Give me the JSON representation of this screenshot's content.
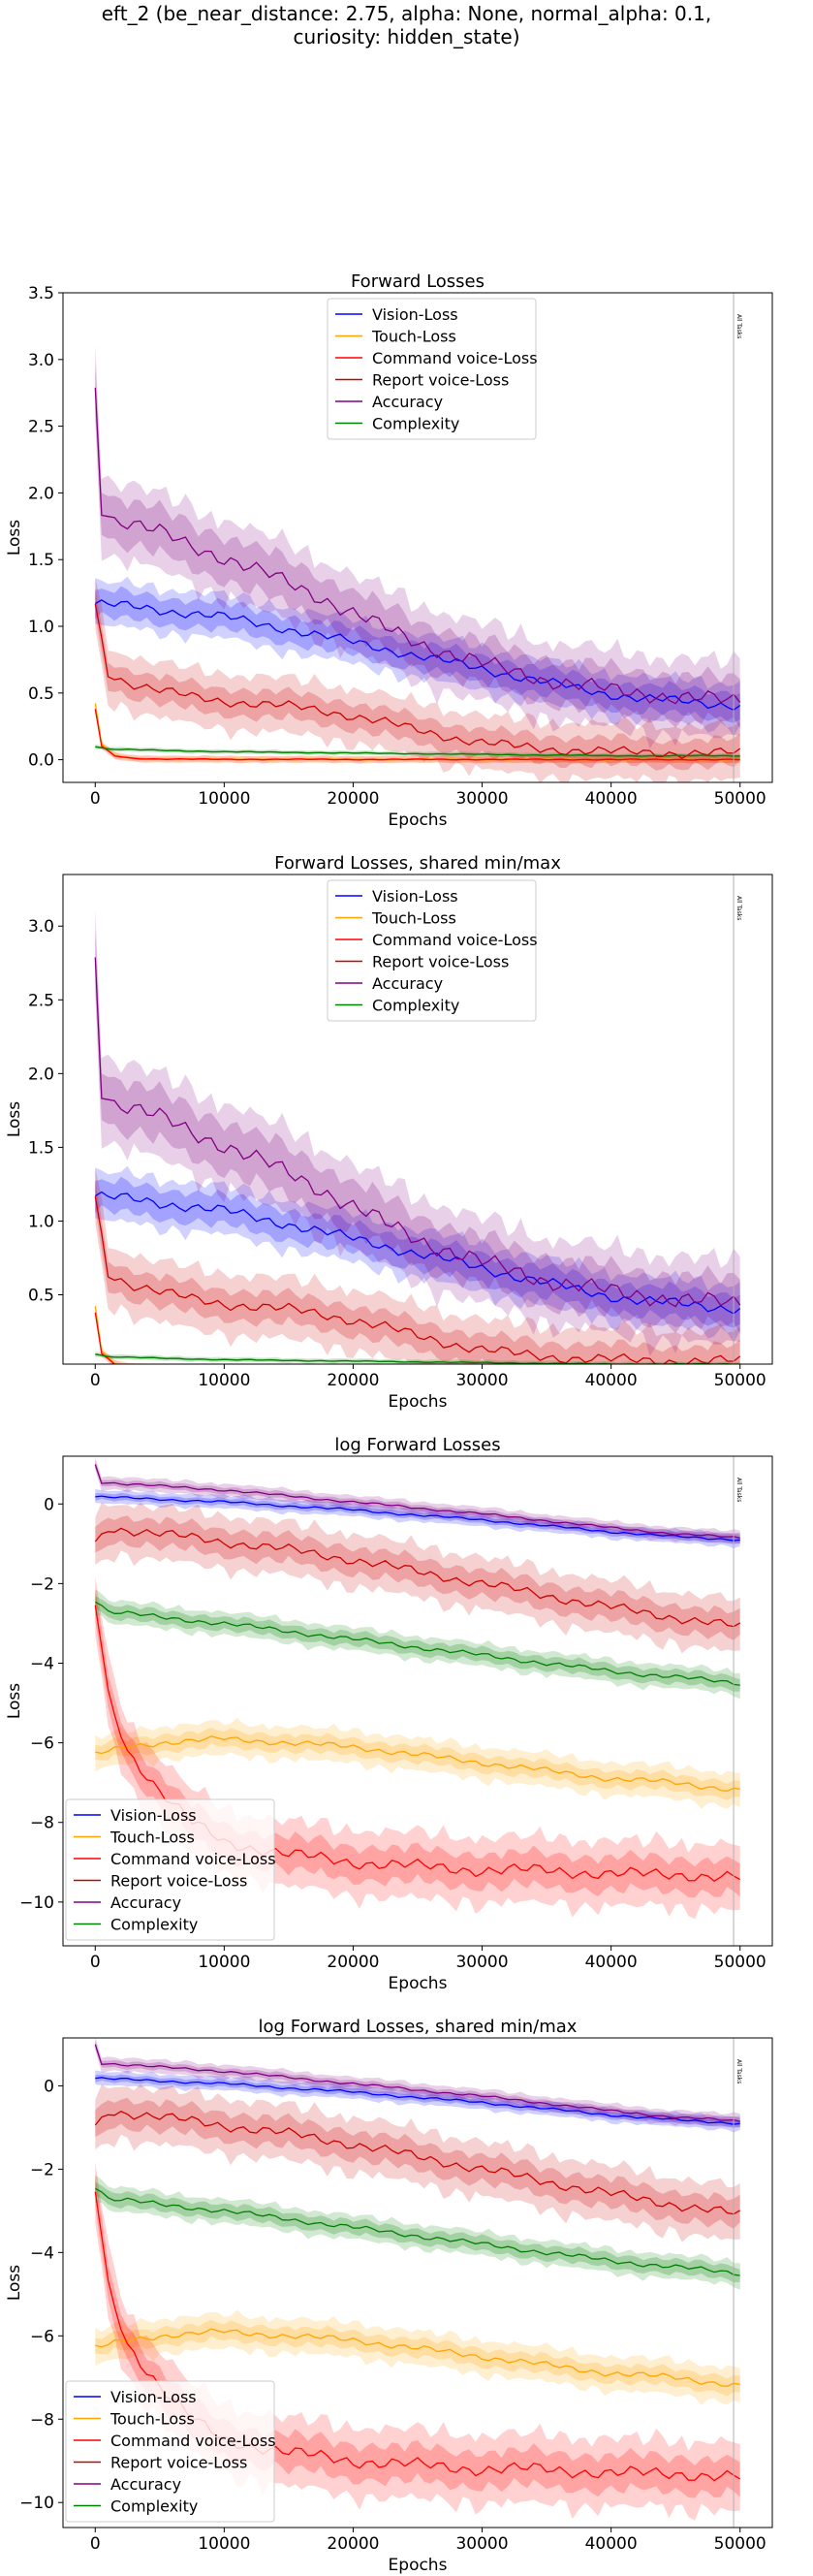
{
  "figure": {
    "title_line1": "eft_2 (be_near_distance: 2.75, alpha: None, normal_alpha: 0.1,",
    "title_line2": "curiosity: hidden_state)",
    "vline_label": "All Tasks"
  },
  "chart_data": [
    {
      "type": "line",
      "title": "Forward Losses",
      "xlabel": "Epochs",
      "ylabel": "Loss",
      "xlim": [
        -2500,
        52500
      ],
      "ylim": [
        -0.17,
        3.5
      ],
      "xticks": [
        0,
        10000,
        20000,
        30000,
        40000,
        50000
      ],
      "yticks": [
        0.0,
        0.5,
        1.0,
        1.5,
        2.0,
        2.5,
        3.0,
        3.5
      ],
      "ytick_labels": [
        "0.0",
        "0.5",
        "1.0",
        "1.5",
        "2.0",
        "2.5",
        "3.0",
        "3.5"
      ],
      "legend": "upper center",
      "vline_x": 49500,
      "series": [
        {
          "name": "Vision-Loss",
          "color": "#0000ff",
          "x": [
            0,
            2500,
            5000,
            7500,
            10000,
            12500,
            15000,
            17500,
            20000,
            22500,
            25000,
            27500,
            30000,
            32500,
            35000,
            37500,
            40000,
            42500,
            45000,
            47500,
            50000
          ],
          "y": [
            1.17,
            1.15,
            1.12,
            1.1,
            1.07,
            1.02,
            0.98,
            0.93,
            0.88,
            0.83,
            0.78,
            0.73,
            0.68,
            0.63,
            0.58,
            0.53,
            0.49,
            0.46,
            0.44,
            0.42,
            0.41
          ],
          "band": 0.12,
          "band2": 0.2
        },
        {
          "name": "Touch-Loss",
          "color": "#ffa500",
          "x": [
            0,
            500,
            1500,
            3000,
            5000,
            10000,
            20000,
            30000,
            40000,
            50000
          ],
          "y": [
            0.42,
            0.12,
            0.03,
            0.01,
            0.005,
            0.003,
            0.002,
            0.002,
            0.001,
            0.001
          ],
          "band": 0.01,
          "band2": 0.03
        },
        {
          "name": "Command voice-Loss",
          "color": "#ff0000",
          "x": [
            0,
            500,
            1500,
            3000,
            5000,
            10000,
            20000,
            30000,
            40000,
            50000
          ],
          "y": [
            0.38,
            0.1,
            0.03,
            0.01,
            0.005,
            0.003,
            0.002,
            0.002,
            0.001,
            0.001
          ],
          "band": 0.01,
          "band2": 0.03
        },
        {
          "name": "Report voice-Loss",
          "color": "#cc0000",
          "x": [
            0,
            1000,
            2500,
            5000,
            7500,
            10000,
            12500,
            15000,
            17500,
            20000,
            22500,
            25000,
            27500,
            30000,
            32500,
            35000,
            37500,
            40000,
            45000,
            50000
          ],
          "y": [
            1.15,
            0.65,
            0.58,
            0.52,
            0.47,
            0.44,
            0.42,
            0.4,
            0.37,
            0.33,
            0.28,
            0.22,
            0.17,
            0.13,
            0.1,
            0.08,
            0.07,
            0.06,
            0.05,
            0.05
          ],
          "band": 0.12,
          "band2": 0.25
        },
        {
          "name": "Accuracy",
          "color": "#800080",
          "x": [
            0,
            500,
            1500,
            2500,
            5000,
            7500,
            10000,
            12500,
            15000,
            17500,
            20000,
            22500,
            25000,
            27500,
            30000,
            32500,
            35000,
            37500,
            40000,
            42500,
            45000,
            47500,
            50000
          ],
          "y": [
            2.8,
            1.9,
            1.8,
            1.78,
            1.7,
            1.6,
            1.52,
            1.42,
            1.32,
            1.22,
            1.1,
            0.98,
            0.88,
            0.8,
            0.72,
            0.66,
            0.6,
            0.56,
            0.52,
            0.5,
            0.47,
            0.45,
            0.44
          ],
          "band": 0.2,
          "band2": 0.35
        },
        {
          "name": "Complexity",
          "color": "#008000",
          "x": [
            0,
            1000,
            5000,
            10000,
            20000,
            30000,
            40000,
            50000
          ],
          "y": [
            0.1,
            0.08,
            0.07,
            0.06,
            0.05,
            0.04,
            0.03,
            0.03
          ],
          "band": 0.01,
          "band2": 0.02
        }
      ]
    },
    {
      "type": "line",
      "title": "Forward Losses, shared min/max",
      "xlabel": "Epochs",
      "ylabel": "Loss",
      "xlim": [
        -2500,
        52500
      ],
      "ylim": [
        0.03,
        3.35
      ],
      "xticks": [
        0,
        10000,
        20000,
        30000,
        40000,
        50000
      ],
      "yticks": [
        0.5,
        1.0,
        1.5,
        2.0,
        2.5,
        3.0
      ],
      "ytick_labels": [
        "0.5",
        "1.0",
        "1.5",
        "2.0",
        "2.5",
        "3.0"
      ],
      "legend": "upper center",
      "vline_x": 49500,
      "series": [
        {
          "name": "Vision-Loss",
          "color": "#0000ff",
          "x": [
            0,
            2500,
            5000,
            7500,
            10000,
            12500,
            15000,
            17500,
            20000,
            22500,
            25000,
            27500,
            30000,
            32500,
            35000,
            37500,
            40000,
            42500,
            45000,
            47500,
            50000
          ],
          "y": [
            1.17,
            1.15,
            1.12,
            1.1,
            1.07,
            1.02,
            0.98,
            0.93,
            0.88,
            0.83,
            0.78,
            0.73,
            0.68,
            0.63,
            0.58,
            0.53,
            0.49,
            0.46,
            0.44,
            0.42,
            0.41
          ],
          "band": 0.12,
          "band2": 0.2
        },
        {
          "name": "Touch-Loss",
          "color": "#ffa500",
          "x": [
            0,
            500,
            1500,
            3000,
            5000,
            10000,
            20000,
            30000,
            40000,
            50000
          ],
          "y": [
            0.42,
            0.12,
            0.03,
            0.01,
            0.005,
            0.003,
            0.002,
            0.002,
            0.001,
            0.001
          ],
          "band": 0.01,
          "band2": 0.03
        },
        {
          "name": "Command voice-Loss",
          "color": "#ff0000",
          "x": [
            0,
            500,
            1500,
            3000,
            5000,
            10000,
            20000,
            30000,
            40000,
            50000
          ],
          "y": [
            0.38,
            0.1,
            0.03,
            0.01,
            0.005,
            0.003,
            0.002,
            0.002,
            0.001,
            0.001
          ],
          "band": 0.01,
          "band2": 0.03
        },
        {
          "name": "Report voice-Loss",
          "color": "#cc0000",
          "x": [
            0,
            1000,
            2500,
            5000,
            7500,
            10000,
            12500,
            15000,
            17500,
            20000,
            22500,
            25000,
            27500,
            30000,
            32500,
            35000,
            37500,
            40000,
            45000,
            50000
          ],
          "y": [
            1.15,
            0.65,
            0.58,
            0.52,
            0.47,
            0.44,
            0.42,
            0.4,
            0.37,
            0.33,
            0.28,
            0.22,
            0.17,
            0.13,
            0.1,
            0.08,
            0.07,
            0.06,
            0.05,
            0.05
          ],
          "band": 0.12,
          "band2": 0.25
        },
        {
          "name": "Accuracy",
          "color": "#800080",
          "x": [
            0,
            500,
            1500,
            2500,
            5000,
            7500,
            10000,
            12500,
            15000,
            17500,
            20000,
            22500,
            25000,
            27500,
            30000,
            32500,
            35000,
            37500,
            40000,
            42500,
            45000,
            47500,
            50000
          ],
          "y": [
            2.8,
            1.9,
            1.8,
            1.78,
            1.7,
            1.6,
            1.52,
            1.42,
            1.32,
            1.22,
            1.1,
            0.98,
            0.88,
            0.8,
            0.72,
            0.66,
            0.6,
            0.56,
            0.52,
            0.5,
            0.47,
            0.45,
            0.44
          ],
          "band": 0.2,
          "band2": 0.35
        },
        {
          "name": "Complexity",
          "color": "#008000",
          "x": [
            0,
            1000,
            5000,
            10000,
            20000,
            30000,
            40000,
            50000
          ],
          "y": [
            0.1,
            0.08,
            0.07,
            0.06,
            0.05,
            0.04,
            0.03,
            0.03
          ],
          "band": 0.01,
          "band2": 0.02
        }
      ]
    },
    {
      "type": "line",
      "title": "log Forward Losses",
      "xlabel": "Epochs",
      "ylabel": "Loss",
      "xlim": [
        -2500,
        52500
      ],
      "ylim": [
        -11.1,
        1.2
      ],
      "xticks": [
        0,
        10000,
        20000,
        30000,
        40000,
        50000
      ],
      "yticks": [
        0,
        -2,
        -4,
        -6,
        -8,
        -10
      ],
      "ytick_labels": [
        "0",
        "−2",
        "−4",
        "−6",
        "−8",
        "−10"
      ],
      "legend": "lower left",
      "vline_x": 49500,
      "series": [
        {
          "name": "Vision-Loss",
          "color": "#0000ff",
          "x": [
            0,
            5000,
            10000,
            15000,
            20000,
            25000,
            30000,
            35000,
            40000,
            45000,
            50000
          ],
          "y": [
            0.18,
            0.12,
            0.05,
            -0.05,
            -0.15,
            -0.28,
            -0.4,
            -0.55,
            -0.7,
            -0.82,
            -0.9
          ],
          "band": 0.1,
          "band2": 0.2
        },
        {
          "name": "Touch-Loss",
          "color": "#ffa500",
          "x": [
            0,
            2500,
            5000,
            10000,
            15000,
            20000,
            25000,
            30000,
            35000,
            40000,
            45000,
            50000
          ],
          "y": [
            -6.3,
            -6.1,
            -6.0,
            -5.9,
            -6.0,
            -6.1,
            -6.3,
            -6.5,
            -6.7,
            -6.9,
            -7.0,
            -7.2
          ],
          "band": 0.25,
          "band2": 0.5
        },
        {
          "name": "Command voice-Loss",
          "color": "#ff0000",
          "x": [
            0,
            1000,
            2500,
            5000,
            7500,
            10000,
            15000,
            20000,
            25000,
            30000,
            35000,
            40000,
            45000,
            50000
          ],
          "y": [
            -2.5,
            -4.8,
            -6.2,
            -7.2,
            -8.0,
            -8.5,
            -8.8,
            -9.0,
            -9.1,
            -9.2,
            -9.2,
            -9.3,
            -9.3,
            -9.4
          ],
          "band": 0.5,
          "band2": 1.0
        },
        {
          "name": "Report voice-Loss",
          "color": "#cc0000",
          "x": [
            0,
            1000,
            2500,
            5000,
            10000,
            15000,
            20000,
            25000,
            30000,
            35000,
            40000,
            45000,
            50000
          ],
          "y": [
            -1.0,
            -0.6,
            -0.65,
            -0.75,
            -0.95,
            -1.15,
            -1.4,
            -1.7,
            -2.0,
            -2.3,
            -2.6,
            -2.85,
            -3.1
          ],
          "band": 0.4,
          "band2": 0.8
        },
        {
          "name": "Accuracy",
          "color": "#800080",
          "x": [
            0,
            500,
            2500,
            5000,
            10000,
            15000,
            20000,
            25000,
            30000,
            35000,
            40000,
            45000,
            50000
          ],
          "y": [
            1.0,
            0.55,
            0.5,
            0.45,
            0.35,
            0.2,
            0.05,
            -0.1,
            -0.25,
            -0.42,
            -0.6,
            -0.75,
            -0.85
          ],
          "band": 0.1,
          "band2": 0.2
        },
        {
          "name": "Complexity",
          "color": "#008000",
          "x": [
            0,
            1000,
            2500,
            5000,
            10000,
            15000,
            20000,
            25000,
            30000,
            35000,
            40000,
            45000,
            50000
          ],
          "y": [
            -2.4,
            -2.7,
            -2.75,
            -2.85,
            -3.0,
            -3.2,
            -3.4,
            -3.6,
            -3.8,
            -4.0,
            -4.2,
            -4.35,
            -4.5
          ],
          "band": 0.2,
          "band2": 0.35
        }
      ]
    },
    {
      "type": "line",
      "title": "log Forward Losses, shared min/max",
      "xlabel": "Epochs",
      "ylabel": "Loss",
      "xlim": [
        -2500,
        52500
      ],
      "ylim": [
        -10.6,
        1.15
      ],
      "xticks": [
        0,
        10000,
        20000,
        30000,
        40000,
        50000
      ],
      "yticks": [
        0,
        -2,
        -4,
        -6,
        -8,
        -10
      ],
      "ytick_labels": [
        "0",
        "−2",
        "−4",
        "−6",
        "−8",
        "−10"
      ],
      "legend": "lower left",
      "vline_x": 49500,
      "series": [
        {
          "name": "Vision-Loss",
          "color": "#0000ff",
          "x": [
            0,
            5000,
            10000,
            15000,
            20000,
            25000,
            30000,
            35000,
            40000,
            45000,
            50000
          ],
          "y": [
            0.18,
            0.12,
            0.05,
            -0.05,
            -0.15,
            -0.28,
            -0.4,
            -0.55,
            -0.7,
            -0.82,
            -0.9
          ],
          "band": 0.1,
          "band2": 0.2
        },
        {
          "name": "Touch-Loss",
          "color": "#ffa500",
          "x": [
            0,
            2500,
            5000,
            10000,
            15000,
            20000,
            25000,
            30000,
            35000,
            40000,
            45000,
            50000
          ],
          "y": [
            -6.3,
            -6.1,
            -6.0,
            -5.9,
            -6.0,
            -6.1,
            -6.3,
            -6.5,
            -6.7,
            -6.9,
            -7.0,
            -7.2
          ],
          "band": 0.25,
          "band2": 0.5
        },
        {
          "name": "Command voice-Loss",
          "color": "#ff0000",
          "x": [
            0,
            1000,
            2500,
            5000,
            7500,
            10000,
            15000,
            20000,
            25000,
            30000,
            35000,
            40000,
            45000,
            50000
          ],
          "y": [
            -2.5,
            -4.8,
            -6.2,
            -7.2,
            -8.0,
            -8.5,
            -8.8,
            -9.0,
            -9.1,
            -9.2,
            -9.2,
            -9.3,
            -9.3,
            -9.4
          ],
          "band": 0.5,
          "band2": 1.0
        },
        {
          "name": "Report voice-Loss",
          "color": "#cc0000",
          "x": [
            0,
            1000,
            2500,
            5000,
            10000,
            15000,
            20000,
            25000,
            30000,
            35000,
            40000,
            45000,
            50000
          ],
          "y": [
            -1.0,
            -0.6,
            -0.65,
            -0.75,
            -0.95,
            -1.15,
            -1.4,
            -1.7,
            -2.0,
            -2.3,
            -2.6,
            -2.85,
            -3.1
          ],
          "band": 0.4,
          "band2": 0.8
        },
        {
          "name": "Accuracy",
          "color": "#800080",
          "x": [
            0,
            500,
            2500,
            5000,
            10000,
            15000,
            20000,
            25000,
            30000,
            35000,
            40000,
            45000,
            50000
          ],
          "y": [
            1.0,
            0.55,
            0.5,
            0.45,
            0.35,
            0.2,
            0.05,
            -0.1,
            -0.25,
            -0.42,
            -0.6,
            -0.75,
            -0.85
          ],
          "band": 0.1,
          "band2": 0.2
        },
        {
          "name": "Complexity",
          "color": "#008000",
          "x": [
            0,
            1000,
            2500,
            5000,
            10000,
            15000,
            20000,
            25000,
            30000,
            35000,
            40000,
            45000,
            50000
          ],
          "y": [
            -2.4,
            -2.7,
            -2.75,
            -2.85,
            -3.0,
            -3.2,
            -3.4,
            -3.6,
            -3.8,
            -4.0,
            -4.2,
            -4.35,
            -4.5
          ],
          "band": 0.2,
          "band2": 0.35
        }
      ]
    }
  ]
}
